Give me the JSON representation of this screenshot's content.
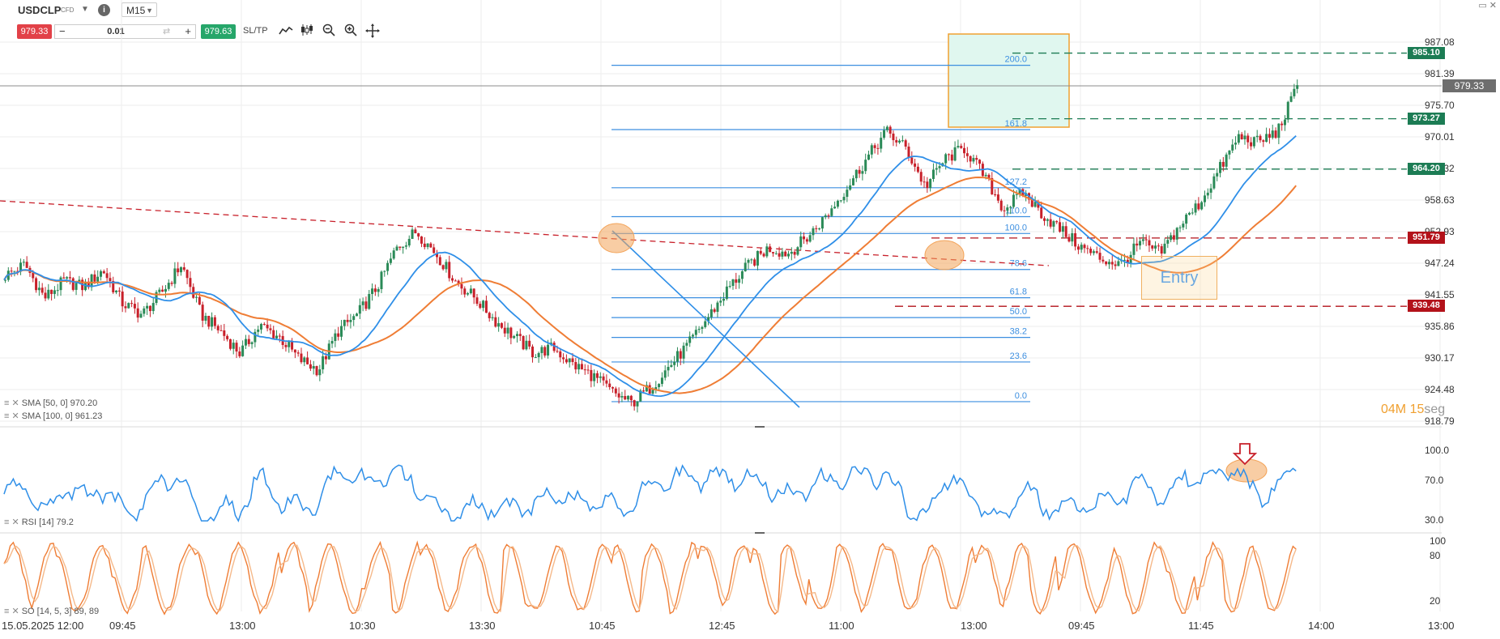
{
  "header": {
    "symbol": "USDCLP",
    "symbol_type": "CFD",
    "timeframe": "M15",
    "sell_price": "979.33",
    "quantity": "0.01",
    "buy_price": "979.63",
    "sltp_label": "SL/TP",
    "tool_icons": [
      "line-chart-icon",
      "candles-icon",
      "zoom-out-icon",
      "zoom-in-icon",
      "crosshair-icon"
    ]
  },
  "window_controls": "▭ ✕",
  "price_axis": [
    "987.08",
    "981.39",
    "975.70",
    "970.01",
    "964.32",
    "958.63",
    "952.93",
    "947.24",
    "941.55",
    "935.86",
    "930.17",
    "924.48",
    "918.79"
  ],
  "current_price": "979.33",
  "levels": [
    {
      "label": "985.10",
      "color": "green"
    },
    {
      "label": "973.27",
      "color": "green"
    },
    {
      "label": "964.20",
      "color": "green"
    },
    {
      "label": "951.79",
      "color": "red"
    },
    {
      "label": "939.48",
      "color": "red"
    }
  ],
  "fib_levels": [
    "200.0",
    "161.8",
    "127.2",
    "110.0",
    "100.0",
    "78.6",
    "61.8",
    "50.0",
    "38.2",
    "23.6",
    "0.0"
  ],
  "indicators": {
    "sma50": "SMA [50, 0] 970.20",
    "sma100": "SMA [100, 0] 961.23",
    "rsi": "RSI [14] 79.2",
    "so": "SO [14, 5, 3] 89, 89"
  },
  "rsi_axis": [
    "100.0",
    "70.0",
    "30.0"
  ],
  "so_axis": [
    "100",
    "80",
    "20"
  ],
  "entry_label": "Entry",
  "timer": {
    "minutes": "04",
    "m": "M",
    "seconds": "15",
    "seg": "seg"
  },
  "time_axis": [
    "15.05.2025 12:00",
    "09:45",
    "13:00",
    "10:30",
    "13:30",
    "10:45",
    "12:45",
    "11:00",
    "13:00",
    "09:45",
    "11:45",
    "14:00",
    "13:00"
  ],
  "colors": {
    "sma50": "#2f8fe8",
    "sma100": "#ef7d35",
    "fib": "#3d8fe0",
    "bull": "#2a8a57",
    "bear": "#c8202a",
    "target_zone": "#e0f7ef",
    "highlight": "#f3a45a"
  },
  "chart_data": {
    "type": "candlestick",
    "instrument": "USDCLP",
    "timeframe": "M15",
    "ylim": [
      918.79,
      987.08
    ],
    "close_last": 979.33,
    "sma50_last": 970.2,
    "sma100_last": 961.23,
    "rsi_last": 79.2,
    "so_last": [
      89,
      89
    ],
    "path": [
      945,
      947,
      941,
      944,
      943,
      946,
      940,
      938,
      942,
      947,
      938,
      935,
      931,
      936,
      934,
      930,
      928,
      935,
      938,
      943,
      950,
      953,
      949,
      944,
      941,
      937,
      934,
      931,
      932,
      929,
      927,
      924,
      922,
      925,
      929,
      933,
      938,
      943,
      947,
      950,
      949,
      952,
      956,
      961,
      966,
      971,
      968,
      961,
      966,
      968,
      963,
      957,
      960,
      956,
      953,
      950,
      948,
      947,
      951,
      949,
      954,
      958,
      964,
      970,
      969,
      971,
      979
    ]
  }
}
